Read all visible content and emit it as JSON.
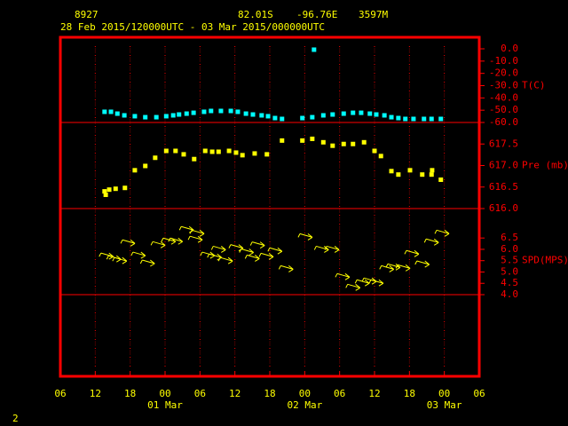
{
  "header": {
    "station": "8927",
    "lat": "82.01S",
    "lon": "-96.76E",
    "elev": "3597M",
    "period": "28 Feb 2015/120000UTC - 03 Mar 2015/000000UTC"
  },
  "footer": "2",
  "x_axis": {
    "xlim": [
      0,
      72
    ],
    "xticks": [
      {
        "value": 0,
        "label": "06"
      },
      {
        "value": 6,
        "label": "12"
      },
      {
        "value": 12,
        "label": "18"
      },
      {
        "value": 18,
        "label": "00"
      },
      {
        "value": 24,
        "label": "06"
      },
      {
        "value": 30,
        "label": "12"
      },
      {
        "value": 36,
        "label": "18"
      },
      {
        "value": 42,
        "label": "00"
      },
      {
        "value": 48,
        "label": "06"
      },
      {
        "value": 54,
        "label": "12"
      },
      {
        "value": 60,
        "label": "18"
      },
      {
        "value": 66,
        "label": "00"
      },
      {
        "value": 72,
        "label": "06"
      }
    ],
    "date_labels": [
      {
        "value": 18,
        "label": "01 Mar"
      },
      {
        "value": 42,
        "label": "02 Mar"
      },
      {
        "value": 66,
        "label": "03 Mar"
      }
    ]
  },
  "chart_data": [
    {
      "type": "scatter",
      "axis_label": "T(C)",
      "color": "#00ffff",
      "ylim": [
        -60,
        9.4
      ],
      "yticks": [
        {
          "value": 0,
          "label": "0.0"
        },
        {
          "value": -10,
          "label": "-10.0"
        },
        {
          "value": -20,
          "label": "-20.0"
        },
        {
          "value": -30,
          "label": "-30.0"
        },
        {
          "value": -40,
          "label": "-40.0"
        },
        {
          "value": -50,
          "label": "-50.0"
        },
        {
          "value": -60,
          "label": "-60.0"
        }
      ],
      "x": [
        7.6,
        8.7,
        9.8,
        11.0,
        12.8,
        14.6,
        16.5,
        18.2,
        19.4,
        20.4,
        21.7,
        22.9,
        24.7,
        25.9,
        27.6,
        29.3,
        30.5,
        31.9,
        33.1,
        34.6,
        35.7,
        36.9,
        38.1,
        41.6,
        43.3,
        43.6,
        45.2,
        46.8,
        48.7,
        50.3,
        51.7,
        53.2,
        54.3,
        55.7,
        56.9,
        58.1,
        59.3,
        60.7,
        62.5,
        63.8,
        65.4
      ],
      "values": [
        -51.3,
        -51.3,
        -52.8,
        -54.2,
        -54.9,
        -55.7,
        -55.7,
        -54.9,
        -54.2,
        -53.5,
        -52.8,
        -52.1,
        -51.3,
        -50.6,
        -50.6,
        -50.6,
        -51.3,
        -52.8,
        -53.5,
        -54.2,
        -54.9,
        -56.4,
        -57.1,
        -56.4,
        -55.7,
        -0.7,
        -54.2,
        -53.5,
        -52.8,
        -52.1,
        -52.1,
        -52.8,
        -53.5,
        -54.2,
        -55.7,
        -56.4,
        -57.1,
        -57.1,
        -57.1,
        -57.1,
        -57.1
      ]
    },
    {
      "type": "scatter",
      "axis_label": "Pre (mb)",
      "color": "#ffff00",
      "ylim": [
        616,
        618
      ],
      "yticks": [
        {
          "value": 617.5,
          "label": "617.5"
        },
        {
          "value": 617,
          "label": "617.0"
        },
        {
          "value": 616.5,
          "label": "616.5"
        },
        {
          "value": 616,
          "label": "616.0"
        }
      ],
      "x": [
        7.6,
        7.8,
        8.4,
        9.5,
        11.1,
        12.8,
        14.6,
        16.3,
        18.2,
        19.8,
        21.2,
        23.0,
        24.9,
        26.1,
        27.2,
        29.0,
        30.2,
        31.3,
        33.4,
        35.5,
        38.1,
        41.6,
        43.3,
        45.2,
        46.8,
        48.7,
        50.3,
        52.2,
        54.0,
        55.1,
        56.9,
        58.1,
        60.1,
        62.2,
        63.8,
        63.9,
        65.4
      ],
      "values": [
        616.4,
        616.32,
        616.44,
        616.46,
        616.48,
        616.89,
        616.99,
        617.18,
        617.34,
        617.34,
        617.26,
        617.15,
        617.34,
        617.32,
        617.32,
        617.34,
        617.3,
        617.24,
        617.28,
        617.26,
        617.58,
        617.58,
        617.62,
        617.54,
        617.46,
        617.5,
        617.5,
        617.54,
        617.34,
        617.22,
        616.87,
        616.79,
        616.89,
        616.79,
        616.79,
        616.89,
        616.67
      ]
    },
    {
      "type": "arrow",
      "axis_label": "SPD(MPS)",
      "color": "#ffff00",
      "ylim": [
        4,
        7.8
      ],
      "yticks": [
        {
          "value": 6.5,
          "label": "6.5"
        },
        {
          "value": 6,
          "label": "6.0"
        },
        {
          "value": 5.5,
          "label": "5.5"
        },
        {
          "value": 5,
          "label": "5.0"
        },
        {
          "value": 4.5,
          "label": "4.5"
        },
        {
          "value": 4,
          "label": "4.0"
        }
      ],
      "x": [
        8.2,
        9.5,
        10.5,
        11.9,
        13.7,
        15.3,
        17.1,
        18.9,
        20.1,
        22.0,
        23.8,
        23.5,
        25.6,
        26.8,
        28.7,
        27.5,
        30.5,
        32.3,
        34.2,
        33.3,
        35.7,
        37.2,
        39.1,
        42.4,
        45.2,
        47.0,
        48.8,
        50.6,
        52.2,
        53.4,
        54.6,
        56.4,
        57.5,
        59.2,
        60.7,
        62.5,
        64.1,
        65.9
      ],
      "values": [
        5.72,
        5.6,
        5.52,
        6.3,
        5.76,
        5.41,
        6.22,
        6.38,
        6.38,
        6.89,
        6.73,
        6.46,
        5.76,
        5.68,
        5.52,
        6.02,
        6.09,
        5.9,
        6.21,
        5.63,
        5.71,
        5.95,
        5.16,
        6.57,
        6.02,
        6.02,
        4.81,
        4.34,
        4.54,
        4.62,
        4.54,
        5.16,
        5.24,
        5.2,
        5.83,
        5.37,
        6.34,
        6.73
      ]
    }
  ]
}
